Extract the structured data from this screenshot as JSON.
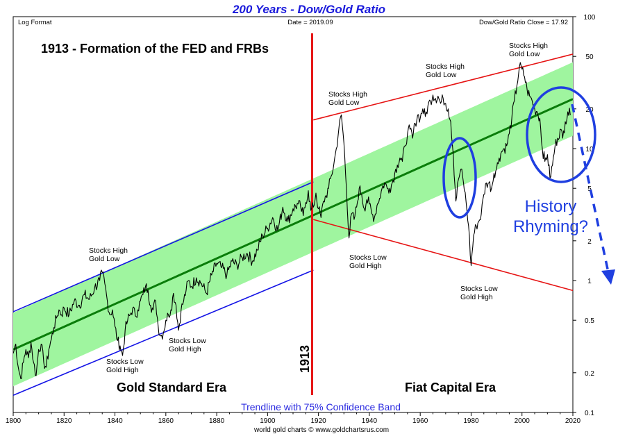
{
  "chart_data": {
    "type": "line",
    "title": "200 Years - Dow/Gold Ratio",
    "header_left": "Log Format",
    "header_center": "Date = 2019.09",
    "header_right": "Dow/Gold Ratio Close = 17.92",
    "y_scale": "log",
    "ylim": [
      0.1,
      100
    ],
    "xlim": [
      1800,
      2020
    ],
    "x_ticks": [
      "1800",
      "1820",
      "1840",
      "1860",
      "1880",
      "1900",
      "1920",
      "1940",
      "1960",
      "1980",
      "2000",
      "2020"
    ],
    "y_ticks": [
      {
        "v": 100,
        "label": "100"
      },
      {
        "v": 50,
        "label": "50"
      },
      {
        "v": 20,
        "label": "20"
      },
      {
        "v": 10,
        "label": "10"
      },
      {
        "v": 5,
        "label": "5"
      },
      {
        "v": 2,
        "label": "2"
      },
      {
        "v": 1,
        "label": "1"
      },
      {
        "v": 0.5,
        "label": "0.5"
      },
      {
        "v": 0.2,
        "label": "0.2"
      },
      {
        "v": 0.1,
        "label": "0.1"
      }
    ],
    "grid": false,
    "series": [
      {
        "values": [
          [
            1800,
            0.28
          ],
          [
            1801,
            0.33
          ],
          [
            1802,
            0.22
          ],
          [
            1803,
            0.18
          ],
          [
            1804,
            0.24
          ],
          [
            1805,
            0.3
          ],
          [
            1806,
            0.26
          ],
          [
            1807,
            0.34
          ],
          [
            1808,
            0.24
          ],
          [
            1809,
            0.19
          ],
          [
            1810,
            0.3
          ],
          [
            1811,
            0.33
          ],
          [
            1812,
            0.24
          ],
          [
            1813,
            0.22
          ],
          [
            1814,
            0.3
          ],
          [
            1815,
            0.36
          ],
          [
            1816,
            0.44
          ],
          [
            1817,
            0.52
          ],
          [
            1818,
            0.6
          ],
          [
            1819,
            0.55
          ],
          [
            1820,
            0.62
          ],
          [
            1822,
            0.55
          ],
          [
            1824,
            0.7
          ],
          [
            1826,
            0.65
          ],
          [
            1828,
            0.78
          ],
          [
            1830,
            0.72
          ],
          [
            1832,
            0.88
          ],
          [
            1834,
            1.0
          ],
          [
            1835,
            1.15
          ],
          [
            1836,
            0.95
          ],
          [
            1837,
            0.7
          ],
          [
            1838,
            0.55
          ],
          [
            1839,
            0.6
          ],
          [
            1840,
            0.45
          ],
          [
            1841,
            0.35
          ],
          [
            1842,
            0.32
          ],
          [
            1843,
            0.27
          ],
          [
            1844,
            0.42
          ],
          [
            1845,
            0.5
          ],
          [
            1846,
            0.55
          ],
          [
            1847,
            0.62
          ],
          [
            1848,
            0.54
          ],
          [
            1849,
            0.6
          ],
          [
            1850,
            0.7
          ],
          [
            1851,
            0.78
          ],
          [
            1852,
            0.9
          ],
          [
            1853,
            0.85
          ],
          [
            1854,
            0.65
          ],
          [
            1855,
            0.6
          ],
          [
            1856,
            0.7
          ],
          [
            1857,
            0.45
          ],
          [
            1858,
            0.38
          ],
          [
            1859,
            0.4
          ],
          [
            1860,
            0.5
          ],
          [
            1861,
            0.55
          ],
          [
            1862,
            0.6
          ],
          [
            1863,
            0.8
          ],
          [
            1864,
            0.65
          ],
          [
            1865,
            0.42
          ],
          [
            1866,
            0.6
          ],
          [
            1867,
            0.7
          ],
          [
            1868,
            0.85
          ],
          [
            1869,
            1.0
          ],
          [
            1870,
            0.9
          ],
          [
            1872,
            1.05
          ],
          [
            1874,
            0.95
          ],
          [
            1876,
            0.8
          ],
          [
            1878,
            1.1
          ],
          [
            1880,
            1.35
          ],
          [
            1882,
            1.25
          ],
          [
            1884,
            1.1
          ],
          [
            1886,
            1.4
          ],
          [
            1888,
            1.3
          ],
          [
            1890,
            1.5
          ],
          [
            1892,
            1.6
          ],
          [
            1894,
            1.4
          ],
          [
            1896,
            1.7
          ],
          [
            1898,
            2.2
          ],
          [
            1900,
            2.5
          ],
          [
            1902,
            3.0
          ],
          [
            1904,
            2.4
          ],
          [
            1906,
            3.6
          ],
          [
            1908,
            2.8
          ],
          [
            1910,
            3.5
          ],
          [
            1912,
            3.8
          ],
          [
            1913,
            3.6
          ],
          [
            1914,
            3.1
          ],
          [
            1915,
            3.9
          ],
          [
            1916,
            4.8
          ],
          [
            1917,
            3.4
          ],
          [
            1918,
            3.6
          ],
          [
            1919,
            4.6
          ],
          [
            1920,
            3.5
          ],
          [
            1921,
            3.0
          ],
          [
            1922,
            4.0
          ],
          [
            1923,
            4.4
          ],
          [
            1924,
            5.0
          ],
          [
            1925,
            6.2
          ],
          [
            1926,
            7.5
          ],
          [
            1927,
            10.0
          ],
          [
            1928,
            14.0
          ],
          [
            1929,
            18.0
          ],
          [
            1930,
            11.0
          ],
          [
            1931,
            5.0
          ],
          [
            1932,
            2.1
          ],
          [
            1933,
            3.2
          ],
          [
            1934,
            2.9
          ],
          [
            1935,
            3.6
          ],
          [
            1936,
            5.0
          ],
          [
            1937,
            4.5
          ],
          [
            1938,
            3.5
          ],
          [
            1939,
            4.1
          ],
          [
            1940,
            3.8
          ],
          [
            1941,
            3.2
          ],
          [
            1942,
            3.0
          ],
          [
            1943,
            3.7
          ],
          [
            1944,
            4.2
          ],
          [
            1945,
            5.0
          ],
          [
            1946,
            5.5
          ],
          [
            1947,
            5.0
          ],
          [
            1948,
            5.0
          ],
          [
            1949,
            5.5
          ],
          [
            1950,
            6.5
          ],
          [
            1951,
            7.5
          ],
          [
            1952,
            8.5
          ],
          [
            1953,
            8.0
          ],
          [
            1954,
            10.5
          ],
          [
            1955,
            13.0
          ],
          [
            1956,
            14.0
          ],
          [
            1957,
            12.0
          ],
          [
            1958,
            15.5
          ],
          [
            1959,
            18.0
          ],
          [
            1960,
            17.0
          ],
          [
            1961,
            20.0
          ],
          [
            1962,
            17.5
          ],
          [
            1963,
            21.0
          ],
          [
            1964,
            23.0
          ],
          [
            1965,
            25.5
          ],
          [
            1966,
            24.0
          ],
          [
            1967,
            25.0
          ],
          [
            1968,
            22.0
          ],
          [
            1969,
            24.0
          ],
          [
            1970,
            22.0
          ],
          [
            1971,
            20.0
          ],
          [
            1972,
            16.0
          ],
          [
            1973,
            9.0
          ],
          [
            1974,
            4.0
          ],
          [
            1975,
            5.8
          ],
          [
            1976,
            7.0
          ],
          [
            1977,
            5.5
          ],
          [
            1978,
            4.0
          ],
          [
            1979,
            2.6
          ],
          [
            1980,
            1.3
          ],
          [
            1981,
            2.2
          ],
          [
            1982,
            2.6
          ],
          [
            1983,
            2.8
          ],
          [
            1984,
            3.2
          ],
          [
            1985,
            4.5
          ],
          [
            1986,
            5.5
          ],
          [
            1987,
            5.5
          ],
          [
            1988,
            5.0
          ],
          [
            1989,
            6.5
          ],
          [
            1990,
            7.0
          ],
          [
            1991,
            8.5
          ],
          [
            1992,
            9.5
          ],
          [
            1993,
            10.0
          ],
          [
            1994,
            10.5
          ],
          [
            1995,
            13.0
          ],
          [
            1996,
            17.0
          ],
          [
            1997,
            23.0
          ],
          [
            1998,
            30.0
          ],
          [
            1999,
            42.0
          ],
          [
            2000,
            40.0
          ],
          [
            2001,
            35.0
          ],
          [
            2002,
            28.0
          ],
          [
            2003,
            25.0
          ],
          [
            2004,
            23.0
          ],
          [
            2005,
            20.0
          ],
          [
            2006,
            19.0
          ],
          [
            2007,
            17.0
          ],
          [
            2008,
            10.0
          ],
          [
            2009,
            8.0
          ],
          [
            2010,
            9.0
          ],
          [
            2011,
            6.0
          ],
          [
            2012,
            7.5
          ],
          [
            2013,
            10.5
          ],
          [
            2014,
            12.0
          ],
          [
            2015,
            14.0
          ],
          [
            2016,
            12.0
          ],
          [
            2017,
            16.0
          ],
          [
            2018,
            19.0
          ],
          [
            2019,
            17.92
          ]
        ]
      }
    ],
    "trendline_label": "Trendline with 75% Confidence Band",
    "annotations": [
      {
        "id": "fed",
        "text": "1913 - Formation of the FED and FRBs"
      },
      {
        "id": "sh1",
        "lines": [
          "Stocks High",
          "Gold Low"
        ]
      },
      {
        "id": "sl1",
        "lines": [
          "Stocks Low",
          "Gold High"
        ]
      },
      {
        "id": "sl2",
        "lines": [
          "Stocks Low",
          "Gold High"
        ]
      },
      {
        "id": "sh2",
        "lines": [
          "Stocks High",
          "Gold Low"
        ]
      },
      {
        "id": "sl3",
        "lines": [
          "Stocks Low",
          "Gold High"
        ]
      },
      {
        "id": "sh3",
        "lines": [
          "Stocks High",
          "Gold Low"
        ]
      },
      {
        "id": "sl4",
        "lines": [
          "Stocks Low",
          "Gold High"
        ]
      },
      {
        "id": "sh4",
        "lines": [
          "Stocks High",
          "Gold Low"
        ]
      },
      {
        "id": "gold_era",
        "text": "Gold Standard Era"
      },
      {
        "id": "fiat_era",
        "text": "Fiat Capital Era"
      },
      {
        "id": "vert1913",
        "text": "1913"
      },
      {
        "id": "history",
        "lines": [
          "History",
          "Rhyming?"
        ]
      }
    ],
    "footer": "world gold charts © www.goldchartsrus.com",
    "colors": {
      "title": "#1a1adb",
      "series": "#000000",
      "trend": "#0a7d0a",
      "band": "#9ff59f",
      "gold_channel": "#1414e6",
      "fiat_channel": "#e61414",
      "vertical": "#e61414",
      "circles": "#1f3fe0",
      "trend_label": "#2a2ae0"
    }
  }
}
